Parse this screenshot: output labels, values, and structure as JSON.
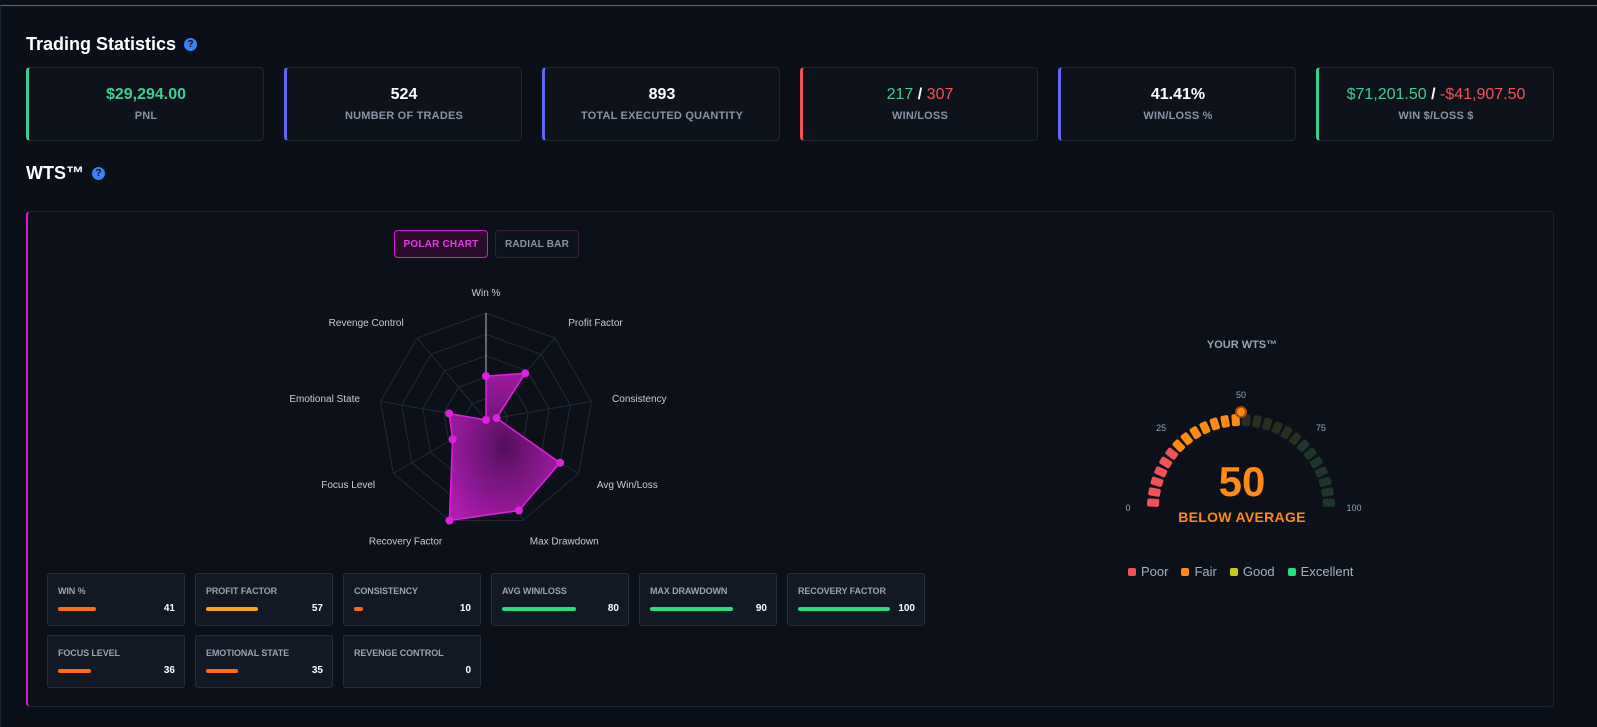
{
  "trading_statistics": {
    "title": "Trading Statistics",
    "cards": [
      {
        "value": "$29,294.00",
        "label": "PNL"
      },
      {
        "value": "524",
        "label": "NUMBER OF TRADES"
      },
      {
        "value": "893",
        "label": "TOTAL EXECUTED QUANTITY"
      },
      {
        "win": "217",
        "sep": " / ",
        "loss": "307",
        "label": "WIN/LOSS"
      },
      {
        "value": "41.41%",
        "label": "WIN/LOSS %"
      },
      {
        "win": "$71,201.50",
        "sep": " / ",
        "loss": "-$41,907.50",
        "label": "WIN $/LOSS $"
      }
    ],
    "accent_colors": [
      "#3ecf8e",
      "#6366f1",
      "#6366f1",
      "#f0525a",
      "#6366f1",
      "#3ecf8e"
    ]
  },
  "wts": {
    "title": "WTS™",
    "toggle": {
      "polar": "POLAR CHART",
      "radial": "RADIAL BAR",
      "active": "polar"
    },
    "chart_data": {
      "type": "radar",
      "categories": [
        "Win %",
        "Profit Factor",
        "Consistency",
        "Avg Win/Loss",
        "Max Drawdown",
        "Recovery Factor",
        "Focus Level",
        "Emotional State",
        "Revenge Control"
      ],
      "values": [
        41,
        57,
        10,
        80,
        90,
        100,
        36,
        35,
        0
      ],
      "range": [
        0,
        100
      ],
      "color": "#e020e0"
    },
    "metrics": [
      {
        "name": "WIN %",
        "value": "41",
        "level": 41,
        "color": "#ff6a13"
      },
      {
        "name": "PROFIT FACTOR",
        "value": "57",
        "level": 57,
        "color": "#ffa514"
      },
      {
        "name": "CONSISTENCY",
        "value": "10",
        "level": 10,
        "color": "#ff6a13"
      },
      {
        "name": "AVG WIN/LOSS",
        "value": "80",
        "level": 80,
        "color": "#22e07a"
      },
      {
        "name": "MAX DRAWDOWN",
        "value": "90",
        "level": 90,
        "color": "#22e07a"
      },
      {
        "name": "RECOVERY FACTOR",
        "value": "100",
        "level": 100,
        "color": "#22e07a"
      },
      {
        "name": "FOCUS LEVEL",
        "value": "36",
        "level": 36,
        "color": "#ff6a13"
      },
      {
        "name": "EMOTIONAL STATE",
        "value": "35",
        "level": 35,
        "color": "#ff6a13"
      },
      {
        "name": "REVENGE CONTROL",
        "value": "0",
        "level": 0,
        "color": "#ff6a13"
      }
    ],
    "gauge": {
      "title": "YOUR WTS™",
      "score": "50",
      "score_value": 50,
      "rating": "BELOW AVERAGE",
      "ticks": [
        "0",
        "25",
        "50",
        "75",
        "100"
      ],
      "range": [
        0,
        100
      ]
    },
    "legend": [
      {
        "label": "Poor",
        "color": "#f0525a"
      },
      {
        "label": "Fair",
        "color": "#ff8a14"
      },
      {
        "label": "Good",
        "color": "#c8c81a"
      },
      {
        "label": "Excellent",
        "color": "#22e07a"
      }
    ]
  }
}
